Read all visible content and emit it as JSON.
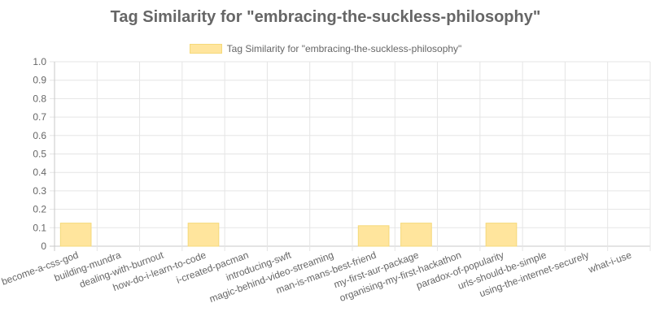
{
  "chart_data": {
    "type": "bar",
    "title": "Tag Similarity for \"embracing-the-suckless-philosophy\"",
    "legend": {
      "position": "top",
      "label": "Tag Similarity for \"embracing-the-suckless-philosophy\""
    },
    "categories": [
      "become-a-css-god",
      "building-mundra",
      "dealing-with-burnout",
      "how-do-i-learn-to-code",
      "i-created-pacman",
      "introducing-swft",
      "magic-behind-video-streaming",
      "man-is-mans-best-friend",
      "my-first-aur-package",
      "organising-my-first-hackathon",
      "paradox-of-popularity",
      "urls-should-be-simple",
      "using-the-internet-securely",
      "what-i-use"
    ],
    "series": [
      {
        "name": "Tag Similarity for \"embracing-the-suckless-philosophy\"",
        "values": [
          0.125,
          0,
          0,
          0.125,
          0,
          0,
          0,
          0.111,
          0.125,
          0,
          0.125,
          0,
          0,
          0
        ]
      }
    ],
    "ylim": [
      0,
      1
    ],
    "y_ticks": [
      "0",
      "0.1",
      "0.2",
      "0.3",
      "0.4",
      "0.5",
      "0.6",
      "0.7",
      "0.8",
      "0.9",
      "1.0"
    ],
    "grid": true,
    "colors": {
      "bar_fill": "#ffe59d",
      "bar_border": "#f5d97a",
      "grid": "#e5e5e5"
    }
  }
}
